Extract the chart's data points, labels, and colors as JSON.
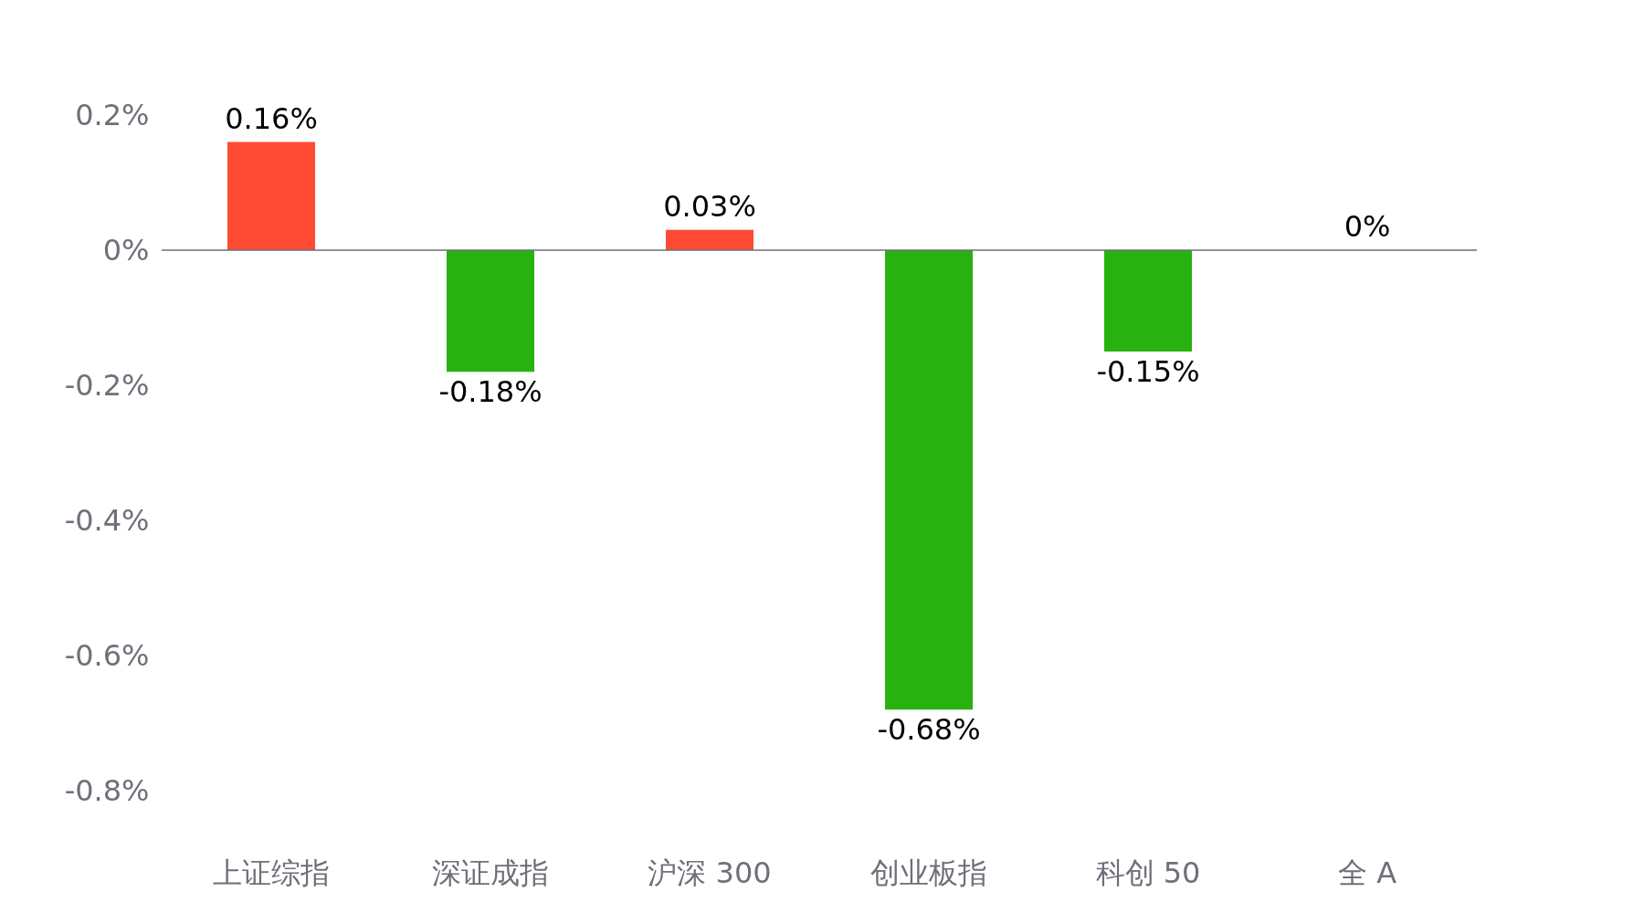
{
  "chart_data": {
    "type": "bar",
    "categories": [
      "上证综指",
      "深证成指",
      "沪深 300",
      "创业板指",
      "科创 50",
      "全 A"
    ],
    "values": [
      0.16,
      -0.18,
      0.03,
      -0.68,
      -0.15,
      0
    ],
    "colors": [
      "#ff4b33",
      "#27b20f",
      "#ff4b33",
      "#27b20f",
      "#27b20f",
      "#27b20f"
    ],
    "value_labels": [
      "0.16%",
      "-0.18%",
      "0.03%",
      "-0.68%",
      "-0.15%",
      "0%"
    ],
    "ylim": [
      -0.8,
      0.2
    ],
    "yticks": [
      {
        "value": 0.2,
        "label": "0.2%"
      },
      {
        "value": 0,
        "label": "0%"
      },
      {
        "value": -0.2,
        "label": "-0.2%"
      },
      {
        "value": -0.4,
        "label": "-0.4%"
      },
      {
        "value": -0.6,
        "label": "-0.6%"
      },
      {
        "value": -0.8,
        "label": "-0.8%"
      }
    ],
    "ref_lines": [
      {
        "axis": "y",
        "value": 0,
        "color": "#6e7079"
      }
    ],
    "grid": false
  }
}
